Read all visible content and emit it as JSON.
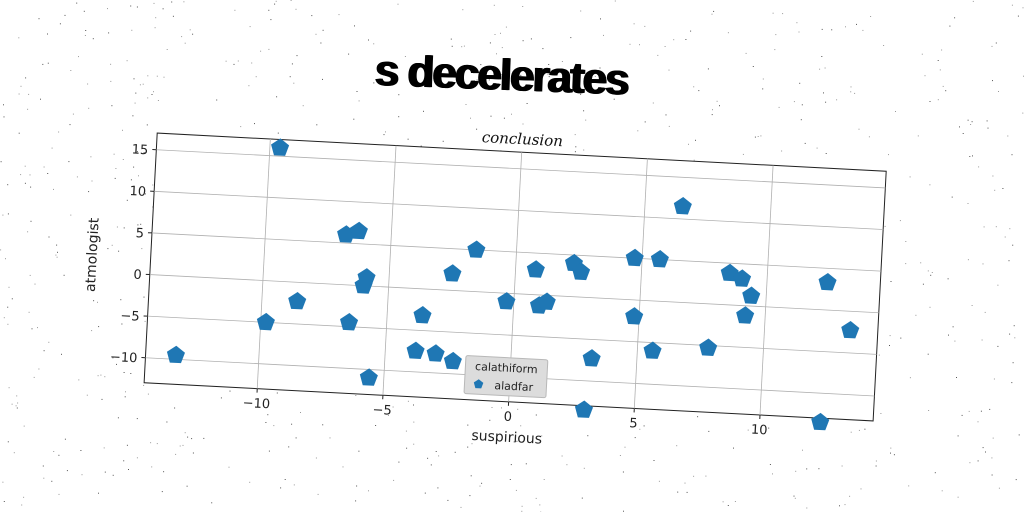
{
  "title": "s decelerates",
  "chart_data": {
    "type": "scatter",
    "title": "conclusion",
    "xlabel": "suspirious",
    "ylabel": "atmologist",
    "xlim": [
      -14.5,
      14.5
    ],
    "ylim": [
      -13,
      17
    ],
    "xticks": [
      -10,
      -5,
      0,
      5,
      10
    ],
    "yticks": [
      -10,
      -5,
      0,
      5,
      10,
      15
    ],
    "grid": true,
    "legend": {
      "title": "calathiform",
      "position": "bottom-center"
    },
    "colors": {
      "marker": "#1f77b4",
      "grid": "#b0b0b0",
      "axes": "#222222"
    },
    "series": [
      {
        "name": "aladfar",
        "marker": "pentagon",
        "points": [
          [
            -9.6,
            16.0
          ],
          [
            -6.8,
            6.0
          ],
          [
            -6.3,
            6.5
          ],
          [
            -5.9,
            1.0
          ],
          [
            -6.0,
            0.0
          ],
          [
            -8.6,
            -2.3
          ],
          [
            -9.8,
            -5.0
          ],
          [
            -6.5,
            -4.5
          ],
          [
            -13.3,
            -9.5
          ],
          [
            -5.6,
            -11.0
          ],
          [
            -3.6,
            -3.2
          ],
          [
            -3.8,
            -7.5
          ],
          [
            -3.0,
            -7.7
          ],
          [
            -2.3,
            -8.5
          ],
          [
            -2.5,
            2.0
          ],
          [
            -1.6,
            5.0
          ],
          [
            -0.3,
            -1.0
          ],
          [
            0.8,
            3.0
          ],
          [
            1.0,
            -1.3
          ],
          [
            1.3,
            -0.8
          ],
          [
            2.3,
            4.0
          ],
          [
            2.6,
            3.0
          ],
          [
            3.2,
            -7.3
          ],
          [
            3.0,
            -13.5
          ],
          [
            4.7,
            5.0
          ],
          [
            4.8,
            -2.0
          ],
          [
            5.6,
            -6.0
          ],
          [
            5.7,
            5.0
          ],
          [
            6.5,
            11.5
          ],
          [
            7.8,
            -5.3
          ],
          [
            8.5,
            3.8
          ],
          [
            9.0,
            3.2
          ],
          [
            9.4,
            1.2
          ],
          [
            9.2,
            -1.2
          ],
          [
            12.4,
            3.3
          ],
          [
            12.4,
            -13.5
          ],
          [
            13.4,
            -2.3
          ]
        ]
      }
    ]
  }
}
